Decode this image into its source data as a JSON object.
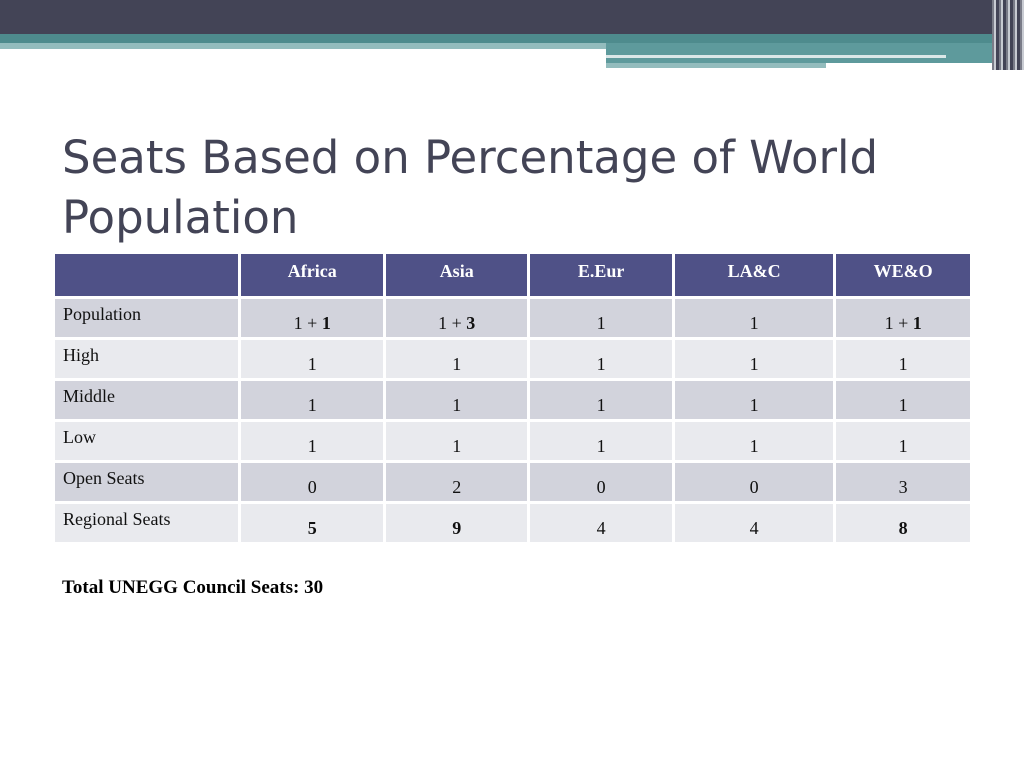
{
  "slide": {
    "title": "Seats Based on Percentage of World Population",
    "total": "Total UNEGG Council Seats: 30"
  },
  "table": {
    "columns": [
      "",
      "Africa",
      "Asia",
      "E.Eur",
      "LA&C",
      "WE&O"
    ],
    "rows": [
      {
        "label": "Population",
        "cells": [
          {
            "base": "1 + ",
            "bold": "1"
          },
          {
            "base": "1 + ",
            "bold": "3"
          },
          {
            "base": "1",
            "bold": ""
          },
          {
            "base": "1",
            "bold": ""
          },
          {
            "base": "1 + ",
            "bold": "1"
          }
        ]
      },
      {
        "label": "High",
        "cells": [
          {
            "base": "1",
            "bold": ""
          },
          {
            "base": "1",
            "bold": ""
          },
          {
            "base": "1",
            "bold": ""
          },
          {
            "base": "1",
            "bold": ""
          },
          {
            "base": "1",
            "bold": ""
          }
        ]
      },
      {
        "label": "Middle",
        "cells": [
          {
            "base": "1",
            "bold": ""
          },
          {
            "base": "1",
            "bold": ""
          },
          {
            "base": "1",
            "bold": ""
          },
          {
            "base": "1",
            "bold": ""
          },
          {
            "base": "1",
            "bold": ""
          }
        ]
      },
      {
        "label": "Low",
        "cells": [
          {
            "base": "1",
            "bold": ""
          },
          {
            "base": "1",
            "bold": ""
          },
          {
            "base": "1",
            "bold": ""
          },
          {
            "base": "1",
            "bold": ""
          },
          {
            "base": "1",
            "bold": ""
          }
        ]
      },
      {
        "label": "Open Seats",
        "cells": [
          {
            "base": "0",
            "bold": ""
          },
          {
            "base": "2",
            "bold": ""
          },
          {
            "base": "0",
            "bold": ""
          },
          {
            "base": "0",
            "bold": ""
          },
          {
            "base": "3",
            "bold": ""
          }
        ]
      },
      {
        "label": "Regional Seats",
        "cells": [
          {
            "base": "",
            "bold": "5"
          },
          {
            "base": "",
            "bold": "9"
          },
          {
            "base": "4",
            "bold": ""
          },
          {
            "base": "4",
            "bold": ""
          },
          {
            "base": "",
            "bold": "8"
          }
        ]
      }
    ]
  },
  "colors": {
    "banner_dark": "#434456",
    "banner_teal": "#4e8b8d",
    "header_fill": "#4f5187",
    "row_odd": "#d2d3dc",
    "row_even": "#e9eaee",
    "title_text": "#434456"
  }
}
